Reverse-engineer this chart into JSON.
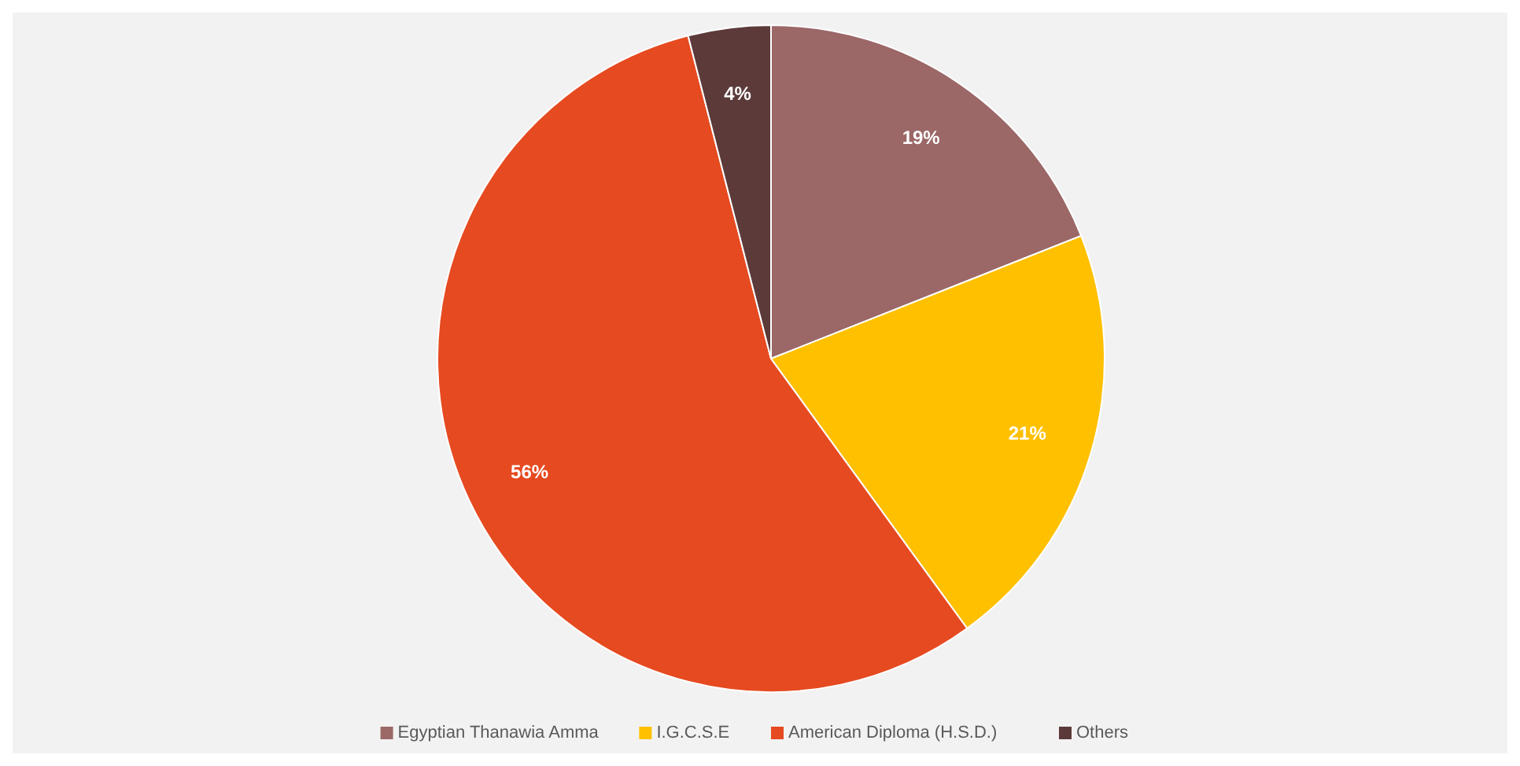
{
  "chart_data": {
    "type": "pie",
    "categories": [
      "Egyptian Thanawia Amma",
      "I.G.C.S.E",
      "American Diploma (H.S.D.)",
      "Others"
    ],
    "values": [
      19,
      21,
      56,
      4
    ],
    "colors": [
      "#9b6767",
      "#ffc000",
      "#e64a20",
      "#5c3a3a"
    ],
    "value_labels": [
      "19%",
      "21%",
      "56%",
      "4%"
    ],
    "legend": "bottom"
  }
}
